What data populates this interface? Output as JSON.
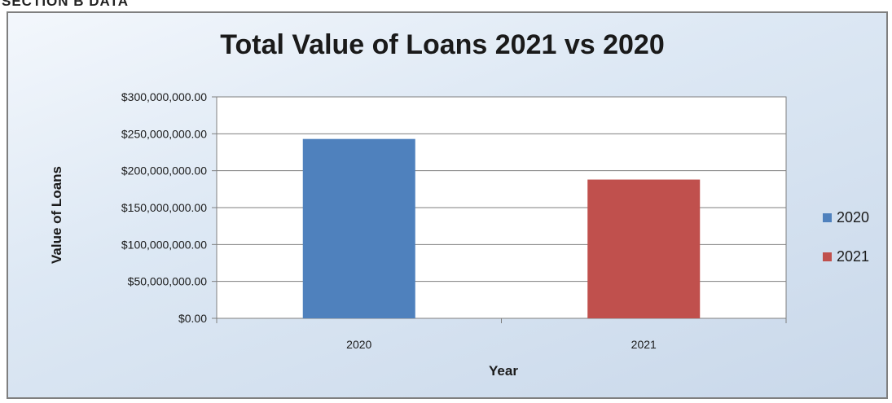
{
  "header": {
    "cut_text": "SECTION B DATA"
  },
  "chart_data": {
    "type": "bar",
    "title": "Total Value of Loans 2021 vs 2020",
    "xlabel": "Year",
    "ylabel": "Value of Loans",
    "categories": [
      "2020",
      "2021"
    ],
    "series": [
      {
        "name": "2020",
        "color": "#4f81bd",
        "values": [
          243000000,
          null
        ]
      },
      {
        "name": "2021",
        "color": "#c0504d",
        "values": [
          null,
          188000000
        ]
      }
    ],
    "ylim": [
      0,
      300000000
    ],
    "yticks": [
      0,
      50000000,
      100000000,
      150000000,
      200000000,
      250000000,
      300000000
    ],
    "ytick_labels": [
      "$0.00",
      "$50,000,000.00",
      "$100,000,000.00",
      "$150,000,000.00",
      "$200,000,000.00",
      "$250,000,000.00",
      "$300,000,000.00"
    ],
    "grid": true,
    "legend_position": "right",
    "plot_background": "#ffffff",
    "frame_gradient": [
      "#f3f7fc",
      "#c9d8ea"
    ]
  }
}
